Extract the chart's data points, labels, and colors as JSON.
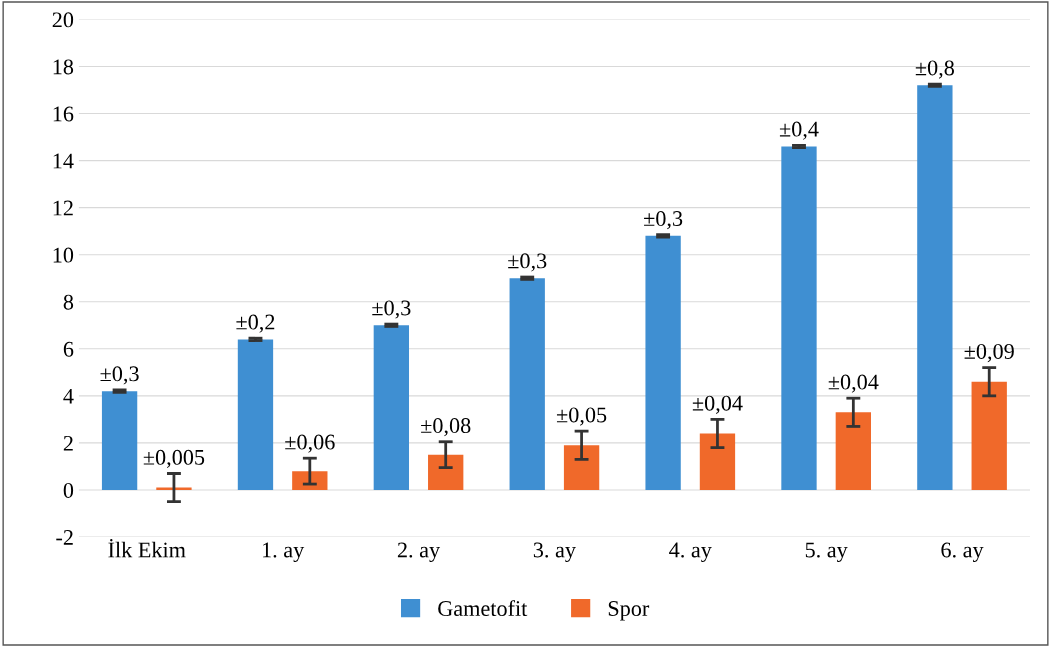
{
  "chart_data": {
    "type": "bar",
    "categories": [
      "İlk Ekim",
      "1. ay",
      "2. ay",
      "3. ay",
      "4. ay",
      "5. ay",
      "6. ay"
    ],
    "series": [
      {
        "name": "Gametofit",
        "color": "#3f8fd2",
        "values": [
          4.2,
          6.4,
          7.0,
          9.0,
          10.8,
          14.6,
          17.2
        ],
        "errors": [
          0.05,
          0.05,
          0.05,
          0.05,
          0.05,
          0.05,
          0.05
        ]
      },
      {
        "name": "Spor",
        "color": "#f0692a",
        "values": [
          0.1,
          0.8,
          1.5,
          1.9,
          2.4,
          3.3,
          4.6
        ],
        "errors": [
          0.6,
          0.55,
          0.55,
          0.6,
          0.6,
          0.6,
          0.6
        ]
      }
    ],
    "annotations": [
      "±0,3",
      "±0,005",
      "±0,2",
      "±0,06",
      "±0,3",
      "±0,08",
      "±0,3",
      "±0,05",
      "±0,3",
      "±0,04",
      "±0,4",
      "±0,04",
      "±0,8",
      "±0,09"
    ],
    "ylim": [
      -2,
      20
    ],
    "yticks": [
      -2,
      0,
      2,
      4,
      6,
      8,
      10,
      12,
      14,
      16,
      18,
      20
    ],
    "grid": "y",
    "legend": "bottom"
  }
}
